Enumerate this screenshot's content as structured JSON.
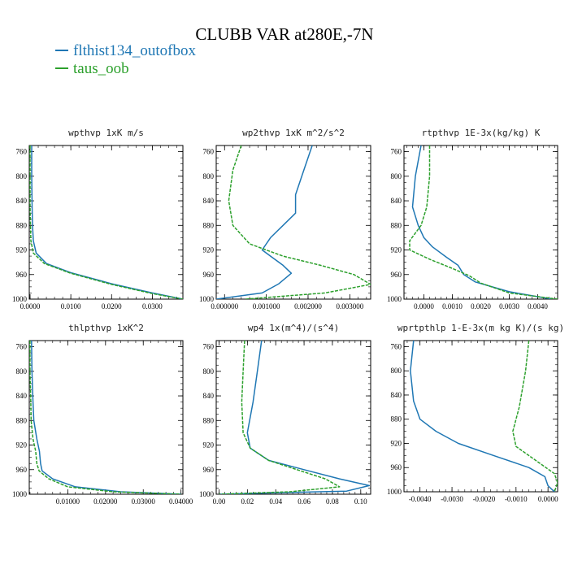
{
  "title": "CLUBB VAR at280E,-7N",
  "legend": [
    {
      "name": "flthist134_outofbox",
      "color": "#1f77b4"
    },
    {
      "name": "taus_oob",
      "color": "#2ca02c"
    }
  ],
  "chart_data": [
    {
      "type": "line",
      "title": "wpthvp   1xK m/s",
      "xlim": [
        -0.0002,
        0.0375
      ],
      "ylim": [
        750,
        1000
      ],
      "y_invert": true,
      "xticks": [
        0.0,
        0.01,
        0.02,
        0.03
      ],
      "xtick_labels": [
        "0.0000",
        "0.0100",
        "0.0200",
        "0.0300"
      ],
      "yticks": [
        760,
        800,
        840,
        880,
        920,
        960,
        1000
      ],
      "series": [
        {
          "color": "#1f77b4",
          "points": [
            [
              0.0004,
              750
            ],
            [
              0.0004,
              800
            ],
            [
              0.0005,
              850
            ],
            [
              0.0006,
              880
            ],
            [
              0.0008,
              905
            ],
            [
              0.0015,
              925
            ],
            [
              0.004,
              942
            ],
            [
              0.01,
              957
            ],
            [
              0.02,
              975
            ],
            [
              0.03,
              990
            ],
            [
              0.0375,
              1000
            ]
          ]
        },
        {
          "color": "#2ca02c",
          "dashed": true,
          "points": [
            [
              0.0,
              750
            ],
            [
              0.0,
              850
            ],
            [
              0.0001,
              880
            ],
            [
              0.0002,
              905
            ],
            [
              0.0008,
              925
            ],
            [
              0.0035,
              942
            ],
            [
              0.01,
              958
            ],
            [
              0.02,
              976
            ],
            [
              0.03,
              991
            ],
            [
              0.0375,
              1000
            ]
          ]
        }
      ]
    },
    {
      "type": "line",
      "title": "wp2thvp   1xK m^2/s^2",
      "xlim": [
        -0.0002,
        0.0035
      ],
      "ylim": [
        750,
        1000
      ],
      "y_invert": true,
      "xticks": [
        0.0,
        0.001,
        0.002,
        0.003
      ],
      "xtick_labels": [
        "0.000000",
        "0.001000",
        "0.002000",
        "0.003000"
      ],
      "yticks": [
        760,
        800,
        840,
        880,
        920,
        960,
        1000
      ],
      "series": [
        {
          "color": "#1f77b4",
          "points": [
            [
              0.0021,
              750
            ],
            [
              0.0019,
              790
            ],
            [
              0.0017,
              830
            ],
            [
              0.0017,
              860
            ],
            [
              0.0014,
              880
            ],
            [
              0.0011,
              900
            ],
            [
              0.0009,
              920
            ],
            [
              0.0011,
              930
            ],
            [
              0.0014,
              945
            ],
            [
              0.0016,
              958
            ],
            [
              0.0013,
              975
            ],
            [
              0.0009,
              990
            ],
            [
              -0.0002,
              1000
            ]
          ]
        },
        {
          "color": "#2ca02c",
          "dashed": true,
          "points": [
            [
              0.0004,
              750
            ],
            [
              0.0002,
              790
            ],
            [
              0.0001,
              840
            ],
            [
              0.0002,
              880
            ],
            [
              0.0006,
              910
            ],
            [
              0.0014,
              930
            ],
            [
              0.0023,
              945
            ],
            [
              0.0031,
              960
            ],
            [
              0.0035,
              976
            ],
            [
              0.0024,
              990
            ],
            [
              0.0005,
              1000
            ]
          ]
        }
      ]
    },
    {
      "type": "line",
      "title": "rtpthvp   1E-3x(kg/kg) K",
      "xlim": [
        -0.0007,
        0.0047
      ],
      "ylim": [
        750,
        1000
      ],
      "y_invert": true,
      "xticks": [
        0.0,
        0.001,
        0.002,
        0.003,
        0.004
      ],
      "xtick_labels": [
        "0.0000",
        "0.0010",
        "0.0020",
        "0.0030",
        "0.0040"
      ],
      "yticks": [
        760,
        800,
        840,
        880,
        920,
        960,
        1000
      ],
      "series": [
        {
          "color": "#1f77b4",
          "points": [
            [
              -0.0001,
              750
            ],
            [
              -0.0003,
              800
            ],
            [
              -0.0004,
              850
            ],
            [
              -0.0002,
              880
            ],
            [
              0.0,
              900
            ],
            [
              0.0003,
              915
            ],
            [
              0.0008,
              932
            ],
            [
              0.0012,
              945
            ],
            [
              0.0014,
              960
            ],
            [
              0.0018,
              972
            ],
            [
              0.003,
              988
            ],
            [
              0.0045,
              1000
            ]
          ]
        },
        {
          "color": "#2ca02c",
          "dashed": true,
          "points": [
            [
              0.0002,
              750
            ],
            [
              0.0002,
              800
            ],
            [
              0.0001,
              850
            ],
            [
              -0.0001,
              880
            ],
            [
              -0.0005,
              905
            ],
            [
              -0.0005,
              920
            ],
            [
              0.0002,
              935
            ],
            [
              0.001,
              950
            ],
            [
              0.0016,
              962
            ],
            [
              0.002,
              974
            ],
            [
              0.003,
              990
            ],
            [
              0.0047,
              1000
            ]
          ]
        }
      ]
    },
    {
      "type": "line",
      "title": "thlpthvp   1xK^2",
      "xlim": [
        -0.0002,
        0.0405
      ],
      "ylim": [
        750,
        1000
      ],
      "y_invert": true,
      "xticks": [
        0.01,
        0.02,
        0.03,
        0.04
      ],
      "xtick_labels": [
        "0.01000",
        "0.02000",
        "0.03000",
        "0.04000"
      ],
      "yticks": [
        760,
        800,
        840,
        880,
        920,
        960,
        1000
      ],
      "series": [
        {
          "color": "#1f77b4",
          "points": [
            [
              0.0004,
              750
            ],
            [
              0.0005,
              800
            ],
            [
              0.0008,
              850
            ],
            [
              0.001,
              880
            ],
            [
              0.0018,
              910
            ],
            [
              0.0025,
              930
            ],
            [
              0.0028,
              950
            ],
            [
              0.0032,
              962
            ],
            [
              0.006,
              975
            ],
            [
              0.012,
              988
            ],
            [
              0.024,
              996
            ],
            [
              0.04,
              1000
            ]
          ]
        },
        {
          "color": "#2ca02c",
          "dashed": true,
          "points": [
            [
              0.0,
              750
            ],
            [
              0.0,
              800
            ],
            [
              0.0002,
              850
            ],
            [
              0.0003,
              880
            ],
            [
              0.0008,
              910
            ],
            [
              0.0015,
              930
            ],
            [
              0.0018,
              950
            ],
            [
              0.0024,
              962
            ],
            [
              0.005,
              975
            ],
            [
              0.01,
              988
            ],
            [
              0.022,
              996
            ],
            [
              0.04,
              1000
            ]
          ]
        }
      ]
    },
    {
      "type": "line",
      "title": "wp4   1x(m^4)/(s^4)",
      "xlim": [
        -0.002,
        0.107
      ],
      "ylim": [
        750,
        1000
      ],
      "y_invert": true,
      "xticks": [
        0.0,
        0.02,
        0.04,
        0.06,
        0.08,
        0.1
      ],
      "xtick_labels": [
        "0.00",
        "0.02",
        "0.04",
        "0.06",
        "0.08",
        "0.10"
      ],
      "yticks": [
        760,
        800,
        840,
        880,
        920,
        960,
        1000
      ],
      "series": [
        {
          "color": "#1f77b4",
          "points": [
            [
              0.03,
              750
            ],
            [
              0.027,
              800
            ],
            [
              0.024,
              850
            ],
            [
              0.02,
              900
            ],
            [
              0.022,
              925
            ],
            [
              0.035,
              945
            ],
            [
              0.06,
              960
            ],
            [
              0.085,
              975
            ],
            [
              0.106,
              986
            ],
            [
              0.09,
              995
            ],
            [
              0.0,
              1000
            ]
          ]
        },
        {
          "color": "#2ca02c",
          "dashed": true,
          "points": [
            [
              0.018,
              750
            ],
            [
              0.017,
              800
            ],
            [
              0.016,
              850
            ],
            [
              0.017,
              900
            ],
            [
              0.022,
              925
            ],
            [
              0.035,
              945
            ],
            [
              0.055,
              960
            ],
            [
              0.075,
              975
            ],
            [
              0.085,
              988
            ],
            [
              0.05,
              996
            ],
            [
              0.0,
              1000
            ]
          ]
        }
      ]
    },
    {
      "type": "line",
      "title": "wprtpthlp   1-E-3x(m kg K)/(s kg)",
      "xlim": [
        -0.0045,
        0.0003
      ],
      "ylim": [
        750,
        1000
      ],
      "y_invert": true,
      "xticks": [
        -0.004,
        -0.003,
        -0.002,
        -0.001,
        0.0
      ],
      "xtick_labels": [
        "-0.0040",
        "-0.0030",
        "-0.0020",
        "-0.0010",
        "0.0000"
      ],
      "yticks": [
        760,
        800,
        840,
        880,
        920,
        960,
        1000
      ],
      "series": [
        {
          "color": "#1f77b4",
          "points": [
            [
              -0.0042,
              750
            ],
            [
              -0.0043,
              800
            ],
            [
              -0.0042,
              850
            ],
            [
              -0.004,
              880
            ],
            [
              -0.0035,
              900
            ],
            [
              -0.0028,
              920
            ],
            [
              -0.0017,
              940
            ],
            [
              -0.0006,
              960
            ],
            [
              -0.0001,
              975
            ],
            [
              0.0,
              990
            ],
            [
              0.0002,
              1000
            ]
          ]
        },
        {
          "color": "#2ca02c",
          "dashed": true,
          "points": [
            [
              -0.0006,
              750
            ],
            [
              -0.0007,
              800
            ],
            [
              -0.0009,
              860
            ],
            [
              -0.0011,
              900
            ],
            [
              -0.001,
              925
            ],
            [
              -0.0006,
              940
            ],
            [
              -0.0002,
              955
            ],
            [
              0.0002,
              970
            ],
            [
              0.0003,
              985
            ],
            [
              0.0002,
              1000
            ]
          ]
        }
      ]
    }
  ]
}
